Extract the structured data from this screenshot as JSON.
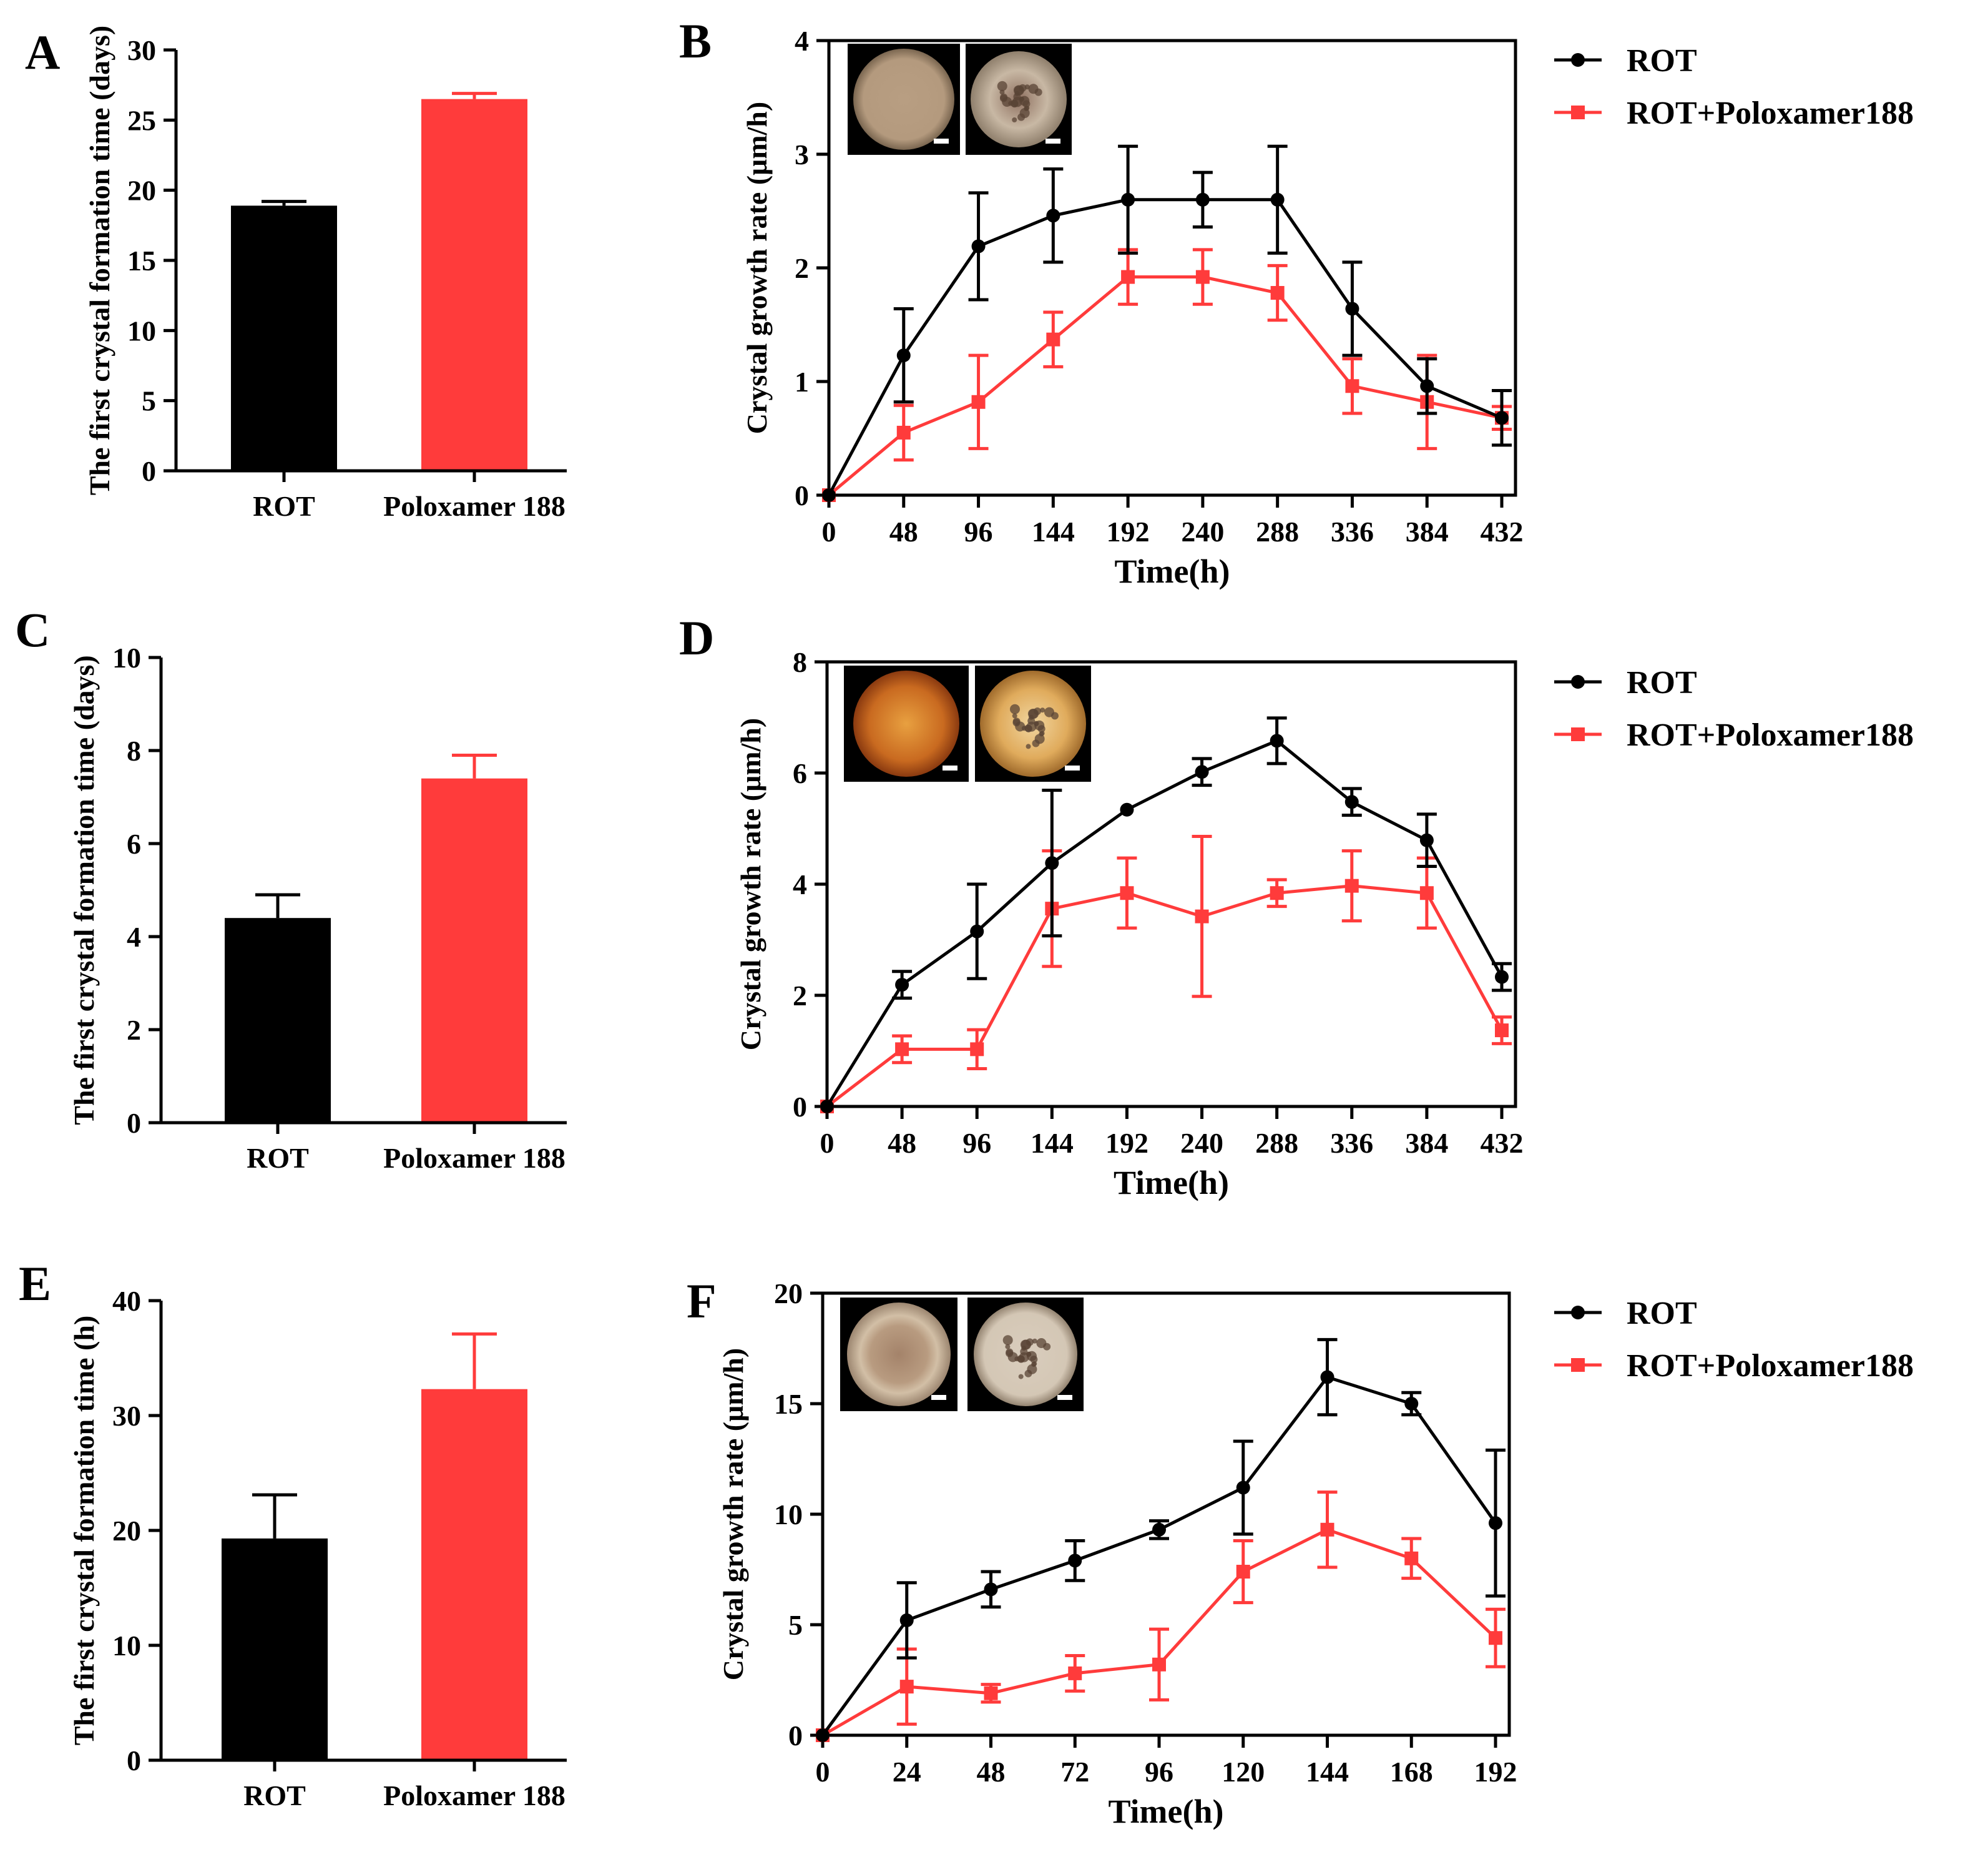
{
  "figure": {
    "black": "#000000",
    "red": "#ff3b3b"
  },
  "chart_data": [
    {
      "id": "A",
      "panel_label": "A",
      "type": "bar",
      "title": "",
      "ylabel": "The first crystal formation time (days)",
      "xlabel": "",
      "categories": [
        "ROT",
        "Poloxamer 188"
      ],
      "values": [
        18.9,
        26.5
      ],
      "errors": [
        0.3,
        0.4
      ],
      "ylim": [
        0,
        30
      ],
      "yticks": [
        0,
        5,
        10,
        15,
        20,
        25,
        30
      ],
      "colors": [
        "#000000",
        "#ff3b3b"
      ]
    },
    {
      "id": "B",
      "panel_label": "B",
      "type": "line",
      "ylabel": "Crystal growth rate (μm/h)",
      "xlabel": "Time(h)",
      "x": [
        0,
        48,
        96,
        144,
        192,
        240,
        288,
        336,
        384,
        432
      ],
      "xlim": [
        0,
        432
      ],
      "xticks": [
        0,
        48,
        96,
        144,
        192,
        240,
        288,
        336,
        384,
        432
      ],
      "ylim": [
        0,
        4
      ],
      "yticks": [
        0,
        1,
        2,
        3,
        4
      ],
      "legend_position": "right",
      "inset_images": [
        "micrograph-rot",
        "micrograph-rot-poloxamer188"
      ],
      "series": [
        {
          "name": "ROT",
          "marker": "circle",
          "color": "#000000",
          "values": [
            0,
            1.23,
            2.19,
            2.46,
            2.6,
            2.6,
            2.6,
            1.64,
            0.96,
            0.68
          ],
          "errors": [
            0,
            0.41,
            0.47,
            0.41,
            0.47,
            0.24,
            0.47,
            0.41,
            0.24,
            0.24
          ]
        },
        {
          "name": "ROT+Poloxamer188",
          "marker": "square",
          "color": "#ff3b3b",
          "values": [
            0,
            0.55,
            0.82,
            1.37,
            1.92,
            1.92,
            1.78,
            0.96,
            0.82,
            0.68
          ],
          "errors": [
            0,
            0.24,
            0.41,
            0.24,
            0.24,
            0.24,
            0.24,
            0.24,
            0.41,
            0.1
          ]
        }
      ]
    },
    {
      "id": "C",
      "panel_label": "C",
      "type": "bar",
      "ylabel": "The first crystal formation time (days)",
      "xlabel": "",
      "categories": [
        "ROT",
        "Poloxamer 188"
      ],
      "values": [
        4.4,
        7.4
      ],
      "errors": [
        0.5,
        0.5
      ],
      "ylim": [
        0,
        10
      ],
      "yticks": [
        0,
        2,
        4,
        6,
        8,
        10
      ],
      "colors": [
        "#000000",
        "#ff3b3b"
      ]
    },
    {
      "id": "D",
      "panel_label": "D",
      "type": "line",
      "ylabel": "Crystal growth rate (μm/h)",
      "xlabel": "Time(h)",
      "x": [
        0,
        48,
        96,
        144,
        192,
        240,
        288,
        336,
        384,
        432
      ],
      "xlim": [
        0,
        432
      ],
      "xticks": [
        0,
        48,
        96,
        144,
        192,
        240,
        288,
        336,
        384,
        432
      ],
      "ylim": [
        0,
        8
      ],
      "yticks": [
        0,
        2,
        4,
        6,
        8
      ],
      "legend_position": "right",
      "inset_images": [
        "micrograph-rot",
        "micrograph-rot-poloxamer188"
      ],
      "series": [
        {
          "name": "ROT",
          "marker": "circle",
          "color": "#000000",
          "values": [
            0,
            2.19,
            3.15,
            4.38,
            5.34,
            6.02,
            6.58,
            5.48,
            4.79,
            2.33
          ],
          "errors": [
            0,
            0.24,
            0.85,
            1.31,
            0,
            0.24,
            0.41,
            0.24,
            0.47,
            0.24
          ]
        },
        {
          "name": "ROT+Poloxamer188",
          "marker": "square",
          "color": "#ff3b3b",
          "values": [
            0,
            1.03,
            1.03,
            3.56,
            3.84,
            3.42,
            3.84,
            3.97,
            3.84,
            1.37
          ],
          "errors": [
            0,
            0.24,
            0.35,
            1.04,
            0.63,
            1.44,
            0.24,
            0.63,
            0.63,
            0.24
          ]
        }
      ]
    },
    {
      "id": "E",
      "panel_label": "E",
      "type": "bar",
      "ylabel": "The first crystal formation time (h)",
      "xlabel": "",
      "categories": [
        "ROT",
        "Poloxamer 188"
      ],
      "values": [
        19.3,
        32.3
      ],
      "errors": [
        3.8,
        4.8
      ],
      "ylim": [
        0,
        40
      ],
      "yticks": [
        0,
        10,
        20,
        30,
        40
      ],
      "colors": [
        "#000000",
        "#ff3b3b"
      ]
    },
    {
      "id": "F",
      "panel_label": "F",
      "type": "line",
      "ylabel": "Crystal growth rate (μm/h)",
      "xlabel": "Time(h)",
      "x": [
        0,
        24,
        48,
        72,
        96,
        120,
        144,
        168,
        192
      ],
      "xlim": [
        0,
        192
      ],
      "xticks": [
        0,
        24,
        48,
        72,
        96,
        120,
        144,
        168,
        192
      ],
      "ylim": [
        0,
        20
      ],
      "yticks": [
        0,
        5,
        10,
        15,
        20
      ],
      "legend_position": "right",
      "inset_images": [
        "micrograph-rot",
        "micrograph-rot-poloxamer188"
      ],
      "series": [
        {
          "name": "ROT",
          "marker": "circle",
          "color": "#000000",
          "values": [
            0,
            5.2,
            6.6,
            7.9,
            9.3,
            11.2,
            16.2,
            15.0,
            9.6
          ],
          "errors": [
            0,
            1.7,
            0.8,
            0.9,
            0.4,
            2.1,
            1.7,
            0.5,
            3.3
          ]
        },
        {
          "name": "ROT+Poloxamer188",
          "marker": "square",
          "color": "#ff3b3b",
          "values": [
            0,
            2.2,
            1.9,
            2.8,
            3.2,
            7.4,
            9.3,
            8.0,
            4.4
          ],
          "errors": [
            0,
            1.7,
            0.4,
            0.8,
            1.6,
            1.4,
            1.7,
            0.9,
            1.3
          ]
        }
      ]
    }
  ]
}
